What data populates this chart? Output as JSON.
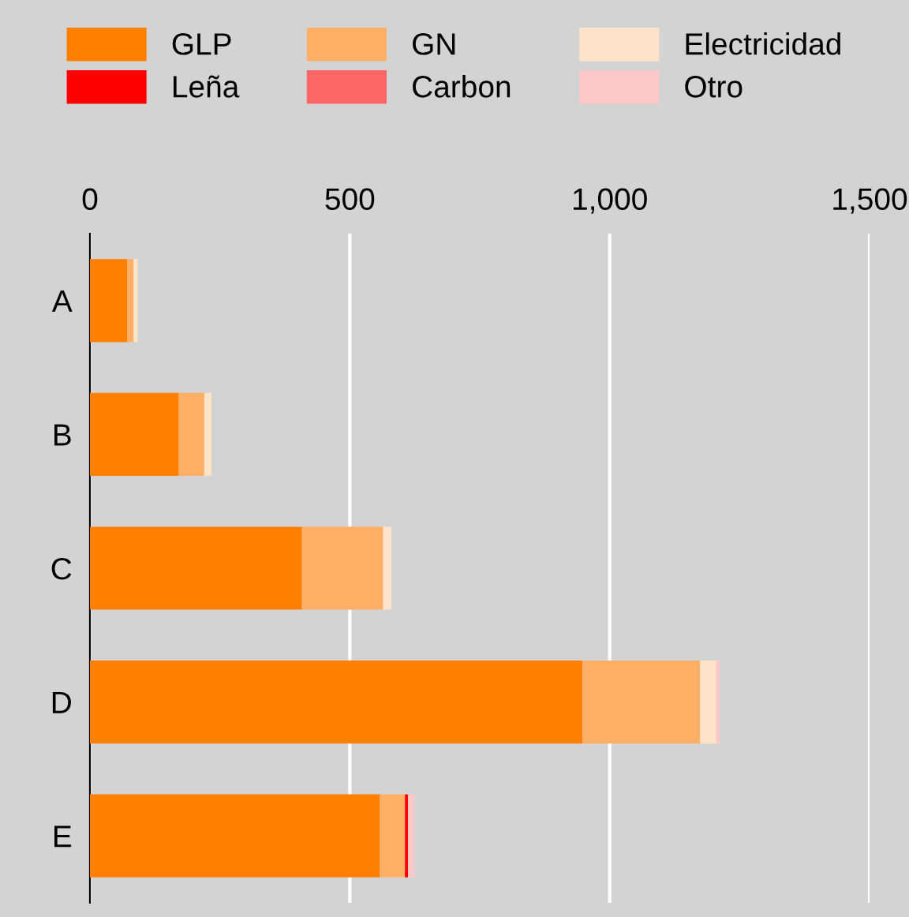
{
  "chart_data": {
    "type": "bar",
    "orientation": "horizontal",
    "stacked": true,
    "categories": [
      "A",
      "B",
      "C",
      "D",
      "E"
    ],
    "series": [
      {
        "name": "GLP",
        "color": "#ff8000",
        "values": [
          72,
          171,
          408,
          948,
          558
        ]
      },
      {
        "name": "GN",
        "color": "#ffb066",
        "values": [
          12,
          49,
          156,
          226,
          48
        ]
      },
      {
        "name": "Electricidad",
        "color": "#ffe3c8",
        "values": [
          8,
          14,
          16,
          31,
          null
        ]
      },
      {
        "name": "Leña",
        "color": "#ff0000",
        "values": [
          0,
          0,
          0,
          0,
          6
        ]
      },
      {
        "name": "Carbon",
        "color": "#ff6666",
        "values": [
          0,
          0,
          0,
          0,
          0
        ]
      },
      {
        "name": "Otro",
        "color": "#ffc8c8",
        "values": [
          0,
          0,
          null,
          6,
          12
        ]
      }
    ],
    "xlim": [
      0,
      1500
    ],
    "xticks": [
      0,
      500,
      {
        "value": 1000,
        "label": "1,000"
      },
      {
        "value": 1500,
        "label": "1,500"
      }
    ],
    "grid": "x",
    "legend": "top"
  }
}
